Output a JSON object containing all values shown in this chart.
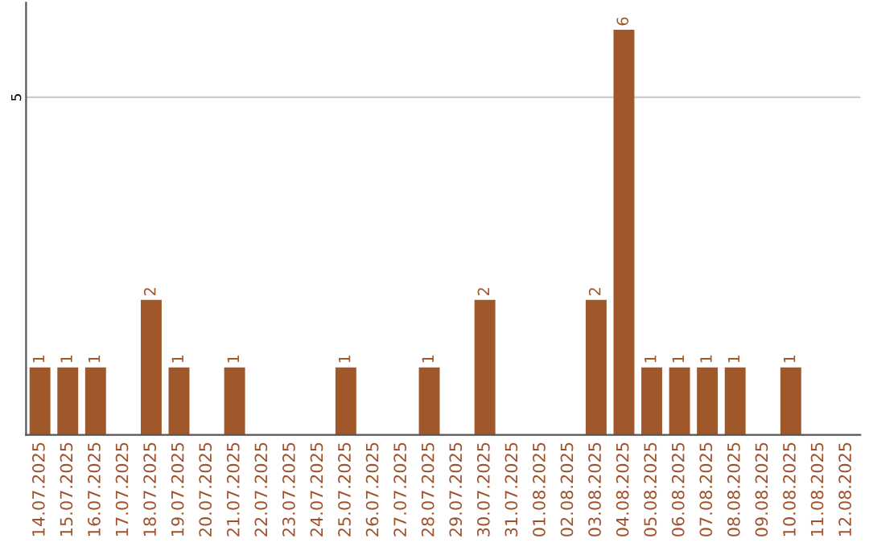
{
  "chart_data": {
    "type": "bar",
    "categories": [
      "14.07.2025",
      "15.07.2025",
      "16.07.2025",
      "17.07.2025",
      "18.07.2025",
      "19.07.2025",
      "20.07.2025",
      "21.07.2025",
      "22.07.2025",
      "23.07.2025",
      "24.07.2025",
      "25.07.2025",
      "26.07.2025",
      "27.07.2025",
      "28.07.2025",
      "29.07.2025",
      "30.07.2025",
      "31.07.2025",
      "01.08.2025",
      "02.08.2025",
      "03.08.2025",
      "04.08.2025",
      "05.08.2025",
      "06.08.2025",
      "07.08.2025",
      "08.08.2025",
      "09.08.2025",
      "10.08.2025",
      "11.08.2025",
      "12.08.2025"
    ],
    "values": [
      1,
      1,
      1,
      0,
      2,
      1,
      0,
      1,
      0,
      0,
      0,
      1,
      0,
      0,
      1,
      0,
      2,
      0,
      0,
      0,
      2,
      6,
      1,
      1,
      1,
      1,
      0,
      1,
      0,
      0
    ],
    "value_labels": [
      "1",
      "1",
      "1",
      null,
      "2",
      "1",
      null,
      "1",
      null,
      null,
      null,
      "1",
      null,
      null,
      "1",
      null,
      "2",
      null,
      null,
      null,
      "2",
      "6",
      "1",
      "1",
      "1",
      "1",
      null,
      "1",
      null,
      null
    ],
    "color": "#a0582a",
    "ylim": [
      0,
      6.4
    ],
    "yticks": [
      5
    ],
    "grid": "y"
  }
}
